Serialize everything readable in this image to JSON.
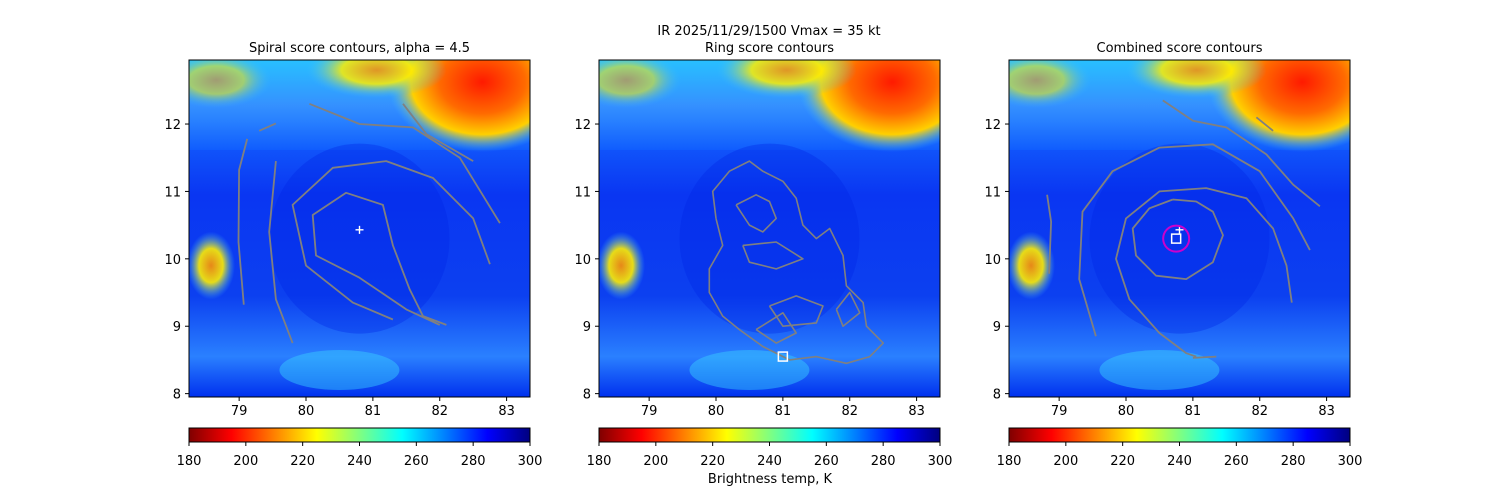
{
  "figure": {
    "suptitle_line1": "IR  2025/11/29/1500    Vmax = 35 kt",
    "colorbar_label": "Brightness temp, K"
  },
  "colormap": {
    "name": "jet_r",
    "stops": [
      "#7f0000",
      "#ff0000",
      "#ff8000",
      "#ffff00",
      "#80ff80",
      "#00ffff",
      "#0080ff",
      "#0000ff",
      "#00007f"
    ]
  },
  "colors": {
    "contour": "#808080",
    "marker_center": "#ffffff",
    "circle": "#cc00cc"
  },
  "chart_data": [
    {
      "type": "heatmap",
      "title": "Spiral score contours, alpha =  4.5",
      "xlim": [
        78.25,
        83.35
      ],
      "ylim": [
        7.95,
        12.95
      ],
      "xticks": [
        "79",
        "80",
        "81",
        "82",
        "83"
      ],
      "yticks": [
        "8",
        "9",
        "10",
        "11",
        "12"
      ],
      "colorbar": {
        "range": [
          180,
          300
        ],
        "ticks": [
          "180",
          "200",
          "220",
          "240",
          "260",
          "280",
          "300"
        ]
      },
      "markers": [
        {
          "shape": "plus",
          "x": 80.8,
          "y": 10.43
        }
      ],
      "contours": [
        [
          [
            79.07,
            9.32
          ],
          [
            78.99,
            10.25
          ],
          [
            79.0,
            11.32
          ],
          [
            79.12,
            11.78
          ]
        ],
        [
          [
            79.3,
            11.9
          ],
          [
            79.55,
            12.01
          ]
        ],
        [
          [
            79.8,
            8.75
          ],
          [
            79.55,
            9.4
          ],
          [
            79.45,
            10.4
          ],
          [
            79.55,
            11.45
          ]
        ],
        [
          [
            81.3,
            9.1
          ],
          [
            80.7,
            9.35
          ],
          [
            80.0,
            9.9
          ],
          [
            79.8,
            10.8
          ],
          [
            80.4,
            11.35
          ],
          [
            81.2,
            11.45
          ],
          [
            81.9,
            11.2
          ],
          [
            82.5,
            10.6
          ],
          [
            82.75,
            9.92
          ]
        ],
        [
          [
            82.1,
            9.02
          ],
          [
            81.75,
            9.15
          ],
          [
            81.55,
            9.55
          ],
          [
            81.3,
            10.2
          ],
          [
            81.15,
            10.8
          ],
          [
            80.6,
            10.98
          ],
          [
            80.1,
            10.65
          ],
          [
            80.15,
            10.05
          ],
          [
            80.8,
            9.72
          ],
          [
            81.5,
            9.25
          ],
          [
            82.0,
            9.02
          ]
        ],
        [
          [
            80.05,
            12.3
          ],
          [
            80.8,
            12.0
          ],
          [
            81.6,
            11.95
          ],
          [
            82.3,
            11.5
          ],
          [
            82.9,
            10.53
          ]
        ],
        [
          [
            81.45,
            12.3
          ],
          [
            81.8,
            11.85
          ],
          [
            82.5,
            11.45
          ]
        ]
      ]
    },
    {
      "type": "heatmap",
      "title": "Ring score contours",
      "xlim": [
        78.25,
        83.35
      ],
      "ylim": [
        7.95,
        12.95
      ],
      "xticks": [
        "79",
        "80",
        "81",
        "82",
        "83"
      ],
      "yticks": [
        "8",
        "9",
        "10",
        "11",
        "12"
      ],
      "colorbar": {
        "range": [
          180,
          300
        ],
        "ticks": [
          "180",
          "200",
          "220",
          "240",
          "260",
          "280",
          "300"
        ]
      },
      "markers": [
        {
          "shape": "square",
          "x": 81.0,
          "y": 8.55
        }
      ],
      "contours": [
        [
          [
            80.0,
            10.6
          ],
          [
            79.95,
            11.0
          ],
          [
            80.2,
            11.3
          ],
          [
            80.5,
            11.45
          ],
          [
            80.7,
            11.3
          ],
          [
            81.0,
            11.15
          ],
          [
            81.2,
            10.9
          ],
          [
            81.3,
            10.5
          ],
          [
            81.5,
            10.3
          ],
          [
            81.7,
            10.45
          ],
          [
            81.9,
            10.05
          ],
          [
            81.95,
            9.6
          ],
          [
            82.2,
            9.35
          ],
          [
            82.25,
            9.0
          ],
          [
            82.5,
            8.75
          ],
          [
            82.3,
            8.55
          ],
          [
            81.95,
            8.45
          ],
          [
            81.5,
            8.55
          ],
          [
            81.1,
            8.5
          ],
          [
            80.7,
            8.7
          ],
          [
            80.35,
            8.95
          ],
          [
            80.1,
            9.15
          ],
          [
            79.9,
            9.5
          ],
          [
            79.9,
            9.85
          ],
          [
            80.1,
            10.2
          ],
          [
            80.0,
            10.6
          ]
        ],
        [
          [
            80.3,
            10.8
          ],
          [
            80.6,
            10.95
          ],
          [
            80.8,
            10.85
          ],
          [
            80.9,
            10.6
          ],
          [
            80.7,
            10.4
          ],
          [
            80.5,
            10.5
          ],
          [
            80.3,
            10.8
          ]
        ],
        [
          [
            80.4,
            10.2
          ],
          [
            80.9,
            10.25
          ],
          [
            81.3,
            10.0
          ],
          [
            80.9,
            9.85
          ],
          [
            80.5,
            9.95
          ],
          [
            80.4,
            10.2
          ]
        ],
        [
          [
            80.8,
            9.3
          ],
          [
            81.2,
            9.45
          ],
          [
            81.6,
            9.3
          ],
          [
            81.5,
            9.05
          ],
          [
            81.0,
            9.0
          ],
          [
            80.8,
            9.3
          ]
        ],
        [
          [
            80.6,
            8.95
          ],
          [
            81.0,
            9.2
          ],
          [
            81.2,
            8.9
          ],
          [
            80.9,
            8.75
          ],
          [
            80.6,
            8.95
          ]
        ],
        [
          [
            81.8,
            9.25
          ],
          [
            82.0,
            9.5
          ],
          [
            82.15,
            9.2
          ],
          [
            81.9,
            9.0
          ],
          [
            81.8,
            9.25
          ]
        ]
      ]
    },
    {
      "type": "heatmap",
      "title": "Combined score contours",
      "xlim": [
        78.25,
        83.35
      ],
      "ylim": [
        7.95,
        12.95
      ],
      "xticks": [
        "79",
        "80",
        "81",
        "82",
        "83"
      ],
      "yticks": [
        "8",
        "9",
        "10",
        "11",
        "12"
      ],
      "colorbar": {
        "range": [
          180,
          300
        ],
        "ticks": [
          "180",
          "200",
          "220",
          "240",
          "260",
          "280",
          "300"
        ]
      },
      "markers": [
        {
          "shape": "plus",
          "x": 80.8,
          "y": 10.43
        },
        {
          "shape": "square",
          "x": 80.75,
          "y": 10.3
        },
        {
          "shape": "circle",
          "x": 80.75,
          "y": 10.3
        }
      ],
      "contours": [
        [
          [
            78.85,
            9.78
          ],
          [
            78.88,
            10.55
          ],
          [
            78.82,
            10.95
          ]
        ],
        [
          [
            79.55,
            8.85
          ],
          [
            79.3,
            9.7
          ],
          [
            79.35,
            10.7
          ],
          [
            79.8,
            11.3
          ],
          [
            80.5,
            11.65
          ],
          [
            81.3,
            11.7
          ],
          [
            82.0,
            11.3
          ],
          [
            82.5,
            10.6
          ],
          [
            82.75,
            10.13
          ]
        ],
        [
          [
            82.48,
            9.35
          ],
          [
            82.4,
            9.9
          ],
          [
            82.2,
            10.45
          ],
          [
            81.8,
            10.9
          ],
          [
            81.2,
            11.05
          ],
          [
            80.5,
            11.0
          ],
          [
            80.0,
            10.6
          ],
          [
            79.85,
            10.0
          ],
          [
            80.05,
            9.4
          ],
          [
            80.5,
            8.9
          ],
          [
            80.9,
            8.6
          ],
          [
            81.05,
            8.55
          ]
        ],
        [
          [
            81.0,
            8.53
          ],
          [
            81.35,
            8.55
          ]
        ],
        [
          [
            80.7,
            10.88
          ],
          [
            81.05,
            10.85
          ],
          [
            81.3,
            10.7
          ],
          [
            81.45,
            10.35
          ],
          [
            81.3,
            9.95
          ],
          [
            80.9,
            9.7
          ],
          [
            80.45,
            9.75
          ],
          [
            80.15,
            10.05
          ],
          [
            80.1,
            10.45
          ],
          [
            80.35,
            10.75
          ],
          [
            80.7,
            10.88
          ]
        ],
        [
          [
            80.55,
            12.35
          ],
          [
            81.0,
            12.05
          ],
          [
            81.5,
            11.95
          ],
          [
            82.1,
            11.55
          ],
          [
            82.5,
            11.1
          ],
          [
            82.9,
            10.78
          ]
        ],
        [
          [
            81.95,
            12.1
          ],
          [
            82.2,
            11.9
          ]
        ]
      ]
    }
  ]
}
